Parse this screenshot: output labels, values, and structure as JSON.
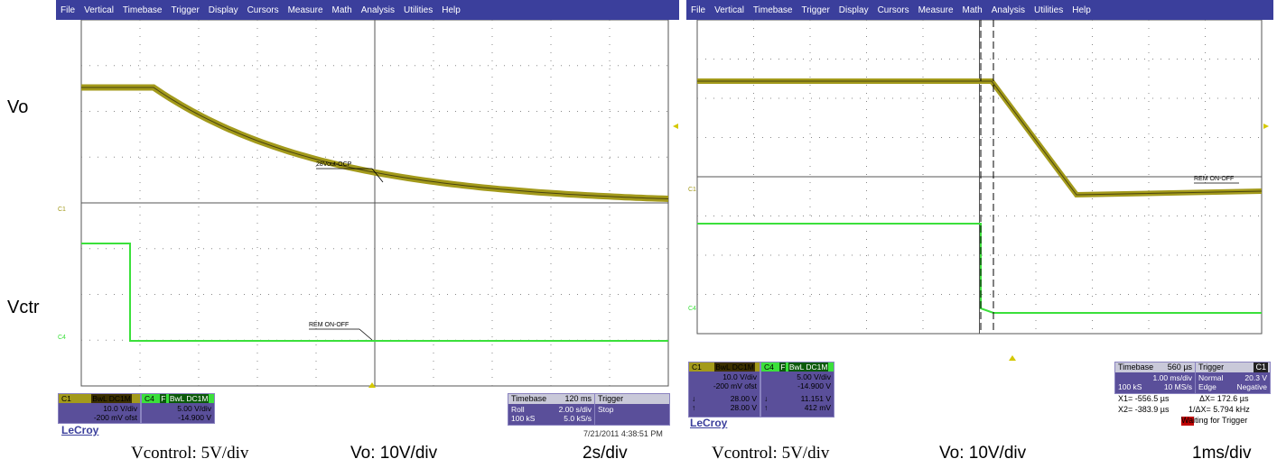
{
  "menu_items": [
    "File",
    "Vertical",
    "Timebase",
    "Trigger",
    "Display",
    "Cursors",
    "Measure",
    "Math",
    "Analysis",
    "Utilities",
    "Help"
  ],
  "side_labels": {
    "vo": "Vo",
    "vctr": "Vctr"
  },
  "colors": {
    "ch1": "#a39a1b",
    "ch4": "#3be03b",
    "menubar": "#3b3f9c",
    "panel": "#5a4f9a"
  },
  "left": {
    "marker_c1": "C1",
    "marker_c4": "C4",
    "ch1_label": "28Vout-OCP",
    "ch4_label": "REM ON-OFF",
    "ch1": {
      "name": "C1",
      "tags": [
        "BwL",
        "DC1M"
      ],
      "vdiv": "10.0 V/div",
      "offset": "-200 mV ofst"
    },
    "ch4": {
      "name": "C4",
      "tags": [
        "F",
        "BwL",
        "DC1M"
      ],
      "vdiv": "5.00 V/div",
      "offset": "-14.900 V"
    },
    "timebase": {
      "label": "Timebase",
      "value": "120 ms",
      "row1_l": "Roll",
      "row1_r": "2.00 s/div",
      "row2_l": "100 kS",
      "row2_r": "5.0 kS/s"
    },
    "trigger": {
      "label": "Trigger",
      "value": "Stop"
    },
    "brand": "LeCroy",
    "date": "7/21/2011 4:38:51 PM",
    "captions": [
      "Vcontrol: 5V/div",
      "Vo: 10V/div",
      "2s/div"
    ]
  },
  "right": {
    "marker_c1": "C1",
    "marker_c4": "C4",
    "ch1_label": "REM ON-OFF",
    "ch1": {
      "name": "C1",
      "tags": [
        "BwL",
        "DC1M"
      ],
      "vdiv": "10.0 V/div",
      "offset": "-200 mV ofst",
      "arrow_down": "28.00 V",
      "arrow_up": "28.00 V"
    },
    "ch4": {
      "name": "C4",
      "tags": [
        "F",
        "BwL",
        "DC1M"
      ],
      "vdiv": "5.00 V/div",
      "offset": "-14.900 V",
      "arrow_down": "11.151 V",
      "arrow_up": "412 mV"
    },
    "timebase": {
      "label": "Timebase",
      "value": "560 µs",
      "row1_r": "1.00 ms/div",
      "row2_l": "100 kS",
      "row2_r": "10 MS/s"
    },
    "trigger": {
      "label": "Trigger",
      "channel": "C1",
      "mode": "Normal",
      "level": "20.3 V",
      "type": "Edge",
      "slope": "Negative"
    },
    "cursors": {
      "x1": "X1= -556.5 µs",
      "dx": "ΔX= 172.6 µs",
      "x2": "X2= -383.9 µs",
      "idx": "1/ΔX= 5.794 kHz"
    },
    "status": "Waiting for Trigger",
    "brand": "LeCroy",
    "captions": [
      "Vcontrol: 5V/div",
      "Vo: 10V/div",
      "1ms/div"
    ]
  }
}
